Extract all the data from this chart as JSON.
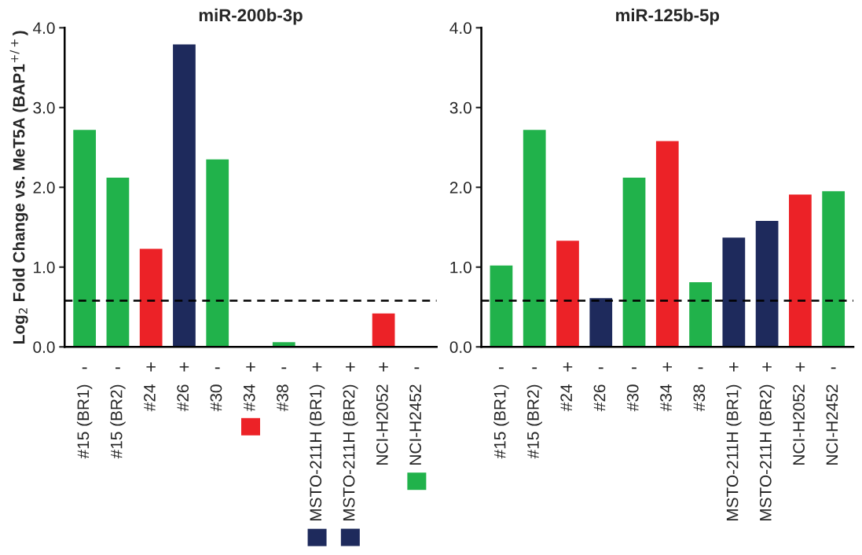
{
  "chart_data": [
    {
      "type": "bar",
      "title": "miR-200b-3p",
      "ylabel": "Log$_{2}$ Fold Change vs. MeT5A (BAP1$^{+/+}$)",
      "categories": [
        "#15 (BR1)",
        "#15 (BR2)",
        "#24",
        "#26",
        "#30",
        "#34",
        "#38",
        "MSTO-211H (BR1)",
        "MSTO-211H (BR2)",
        "NCI-H2052",
        "NCI-H2452"
      ],
      "values": [
        2.72,
        2.12,
        1.23,
        3.79,
        2.35,
        0,
        0.06,
        0,
        0,
        0.42,
        0
      ],
      "colors": [
        "#21b24b",
        "#21b24b",
        "#ec2227",
        "#1e2a5c",
        "#21b24b",
        "#ec2227",
        "#21b24b",
        "#1e2a5c",
        "#1e2a5c",
        "#ec2227",
        "#21b24b"
      ],
      "ylim": [
        0,
        4
      ],
      "yticks": [
        {
          "value": 0,
          "label": "0.0"
        },
        {
          "value": 1,
          "label": "1.0"
        },
        {
          "value": 2,
          "label": "2.0"
        },
        {
          "value": 3,
          "label": "3.0"
        },
        {
          "value": 4,
          "label": "4.0"
        }
      ],
      "ref_lines": [
        {
          "axis": "y",
          "value": 0.58,
          "line_style": "dashed",
          "color": "#000000"
        }
      ],
      "annotations": [
        "-",
        "-",
        "+",
        "+",
        "-",
        "+",
        "-",
        "+",
        "+",
        "+",
        "-"
      ],
      "grid": false,
      "legend": false
    },
    {
      "type": "bar",
      "title": "miR-125b-5p",
      "categories": [
        "#15 (BR1)",
        "#15 (BR2)",
        "#24",
        "#26",
        "#30",
        "#34",
        "#38",
        "MSTO-211H (BR1)",
        "MSTO-211H (BR2)",
        "NCI-H2052",
        "NCI-H2452"
      ],
      "values": [
        1.02,
        2.72,
        1.33,
        0.61,
        2.12,
        2.58,
        0.81,
        1.37,
        1.58,
        1.91,
        1.95
      ],
      "colors": [
        "#21b24b",
        "#21b24b",
        "#ec2227",
        "#1e2a5c",
        "#21b24b",
        "#ec2227",
        "#21b24b",
        "#1e2a5c",
        "#1e2a5c",
        "#ec2227",
        "#21b24b"
      ],
      "ylim": [
        0,
        4
      ],
      "yticks": [
        {
          "value": 0,
          "label": "0.0"
        },
        {
          "value": 1,
          "label": "1.0"
        },
        {
          "value": 2,
          "label": "2.0"
        },
        {
          "value": 3,
          "label": "3.0"
        },
        {
          "value": 4,
          "label": "4.0"
        }
      ],
      "ref_lines": [
        {
          "axis": "y",
          "value": 0.58,
          "line_style": "dashed",
          "color": "#000000"
        }
      ],
      "annotations": [
        "-",
        "-",
        "+",
        "-",
        "-",
        "+",
        "-",
        "+",
        "+",
        "+",
        "-"
      ],
      "grid": false,
      "legend": false
    }
  ]
}
